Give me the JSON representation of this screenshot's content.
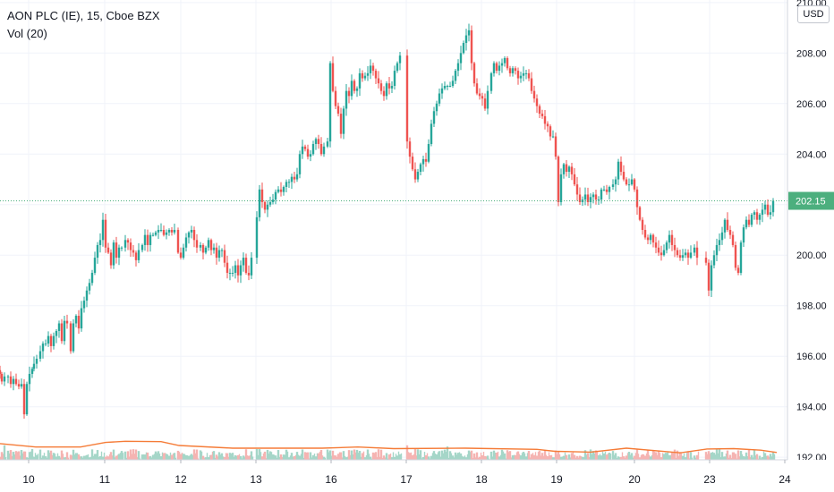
{
  "header": {
    "symbol_line": "AON PLC (IE), 15, Cboe BZX",
    "volume_line": "Vol (20)",
    "currency": "USD"
  },
  "chart_data": {
    "type": "candlestick",
    "title": "AON PLC (IE), 15, Cboe BZX",
    "ylim": [
      191.9,
      210.1
    ],
    "y_ticks": [
      192,
      194,
      196,
      198,
      200,
      202,
      204,
      206,
      208,
      210
    ],
    "y_tick_labels": [
      "192.00",
      "194.00",
      "196.00",
      "198.00",
      "200.00",
      "202.00",
      "204.00",
      "206.00",
      "208.00",
      "210.00"
    ],
    "x_tick_labels": [
      "10",
      "11",
      "12",
      "13",
      "16",
      "17",
      "18",
      "19",
      "20",
      "23",
      "24"
    ],
    "last_price": 202.15,
    "last_price_label": "202.15",
    "colors": {
      "up": "#26a69a",
      "down": "#ef5350",
      "up_volume": "#a5d6c8",
      "down_volume": "#f5b4b2",
      "ma": "#f57c38",
      "last_badge": "#4caf7e",
      "grid": "#f0f3fa"
    },
    "close_path": [
      [
        0,
        195.3
      ],
      [
        2,
        195.0
      ],
      [
        5,
        195.2
      ],
      [
        9,
        195.2
      ],
      [
        12,
        194.9
      ],
      [
        15,
        195.1
      ],
      [
        18,
        194.9
      ],
      [
        21,
        194.8
      ],
      [
        24,
        194.9
      ],
      [
        27,
        193.7
      ],
      [
        30,
        194.9
      ],
      [
        33,
        195.3
      ],
      [
        36,
        195.5
      ],
      [
        38,
        195.7
      ],
      [
        41,
        195.9
      ],
      [
        45,
        196.2
      ],
      [
        48,
        196.5
      ],
      [
        51,
        196.5
      ],
      [
        54,
        196.8
      ],
      [
        57,
        196.4
      ],
      [
        60,
        196.8
      ],
      [
        63,
        197.0
      ],
      [
        66,
        197.3
      ],
      [
        69,
        196.6
      ],
      [
        72,
        197.4
      ],
      [
        75,
        197.3
      ],
      [
        79,
        196.2
      ],
      [
        82,
        197.3
      ],
      [
        85,
        197.6
      ],
      [
        88,
        197.1
      ],
      [
        91,
        197.9
      ],
      [
        94,
        198.2
      ],
      [
        97,
        198.6
      ],
      [
        100,
        198.9
      ],
      [
        103,
        199.3
      ],
      [
        106,
        199.9
      ],
      [
        109,
        200.4
      ],
      [
        112,
        200.6
      ],
      [
        115,
        201.4
      ],
      [
        118,
        200.3
      ],
      [
        121,
        200.1
      ],
      [
        124,
        199.6
      ],
      [
        127,
        200.5
      ],
      [
        130,
        199.9
      ],
      [
        133,
        200.3
      ],
      [
        136,
        200.3
      ],
      [
        140,
        200.6
      ],
      [
        143,
        200.5
      ],
      [
        146,
        200.2
      ],
      [
        149,
        200.1
      ],
      [
        152,
        199.8
      ],
      [
        155,
        200.2
      ],
      [
        159,
        200.4
      ],
      [
        162,
        200.8
      ],
      [
        165,
        200.4
      ],
      [
        168,
        200.8
      ],
      [
        171,
        200.8
      ],
      [
        174,
        200.9
      ],
      [
        177,
        201.0
      ],
      [
        180,
        201.0
      ],
      [
        183,
        200.8
      ],
      [
        186,
        200.9
      ],
      [
        189,
        201.0
      ],
      [
        192,
        200.9
      ],
      [
        195,
        201.0
      ],
      [
        199,
        200.1
      ],
      [
        202,
        199.9
      ],
      [
        205,
        200.3
      ],
      [
        208,
        200.7
      ],
      [
        211,
        200.9
      ],
      [
        214,
        201.0
      ],
      [
        217,
        200.6
      ],
      [
        220,
        200.3
      ],
      [
        224,
        200.4
      ],
      [
        227,
        200.1
      ],
      [
        230,
        200.3
      ],
      [
        233,
        200.6
      ],
      [
        236,
        200.2
      ],
      [
        239,
        200.3
      ],
      [
        242,
        199.9
      ],
      [
        245,
        200.2
      ],
      [
        248,
        200.2
      ],
      [
        251,
        199.7
      ],
      [
        254,
        199.3
      ],
      [
        257,
        199.3
      ],
      [
        260,
        199.3
      ],
      [
        263,
        199.6
      ],
      [
        266,
        199.2
      ],
      [
        269,
        199.6
      ],
      [
        272,
        199.9
      ],
      [
        275,
        199.3
      ],
      [
        278,
        199.2
      ],
      [
        281,
        199.9
      ],
      [
        287,
        201.5
      ],
      [
        290,
        202.6
      ],
      [
        293,
        202.1
      ],
      [
        296,
        201.8
      ],
      [
        299,
        202.0
      ],
      [
        302,
        202.1
      ],
      [
        305,
        202.2
      ],
      [
        308,
        202.5
      ],
      [
        311,
        202.6
      ],
      [
        314,
        202.5
      ],
      [
        317,
        202.7
      ],
      [
        320,
        202.9
      ],
      [
        323,
        202.9
      ],
      [
        326,
        203.1
      ],
      [
        329,
        203.0
      ],
      [
        332,
        203.2
      ],
      [
        335,
        204.0
      ],
      [
        338,
        204.3
      ],
      [
        341,
        204.2
      ],
      [
        344,
        203.9
      ],
      [
        347,
        204.0
      ],
      [
        350,
        204.4
      ],
      [
        353,
        204.6
      ],
      [
        356,
        204.4
      ],
      [
        359,
        204.0
      ],
      [
        362,
        204.3
      ],
      [
        366,
        204.5
      ],
      [
        369,
        207.6
      ],
      [
        372,
        206.5
      ],
      [
        375,
        205.9
      ],
      [
        378,
        205.6
      ],
      [
        381,
        204.8
      ],
      [
        384,
        205.8
      ],
      [
        387,
        206.5
      ],
      [
        390,
        206.3
      ],
      [
        393,
        206.9
      ],
      [
        396,
        206.5
      ],
      [
        399,
        206.6
      ],
      [
        402,
        207.2
      ],
      [
        405,
        207.0
      ],
      [
        408,
        207.1
      ],
      [
        411,
        207.2
      ],
      [
        414,
        207.5
      ],
      [
        417,
        207.3
      ],
      [
        420,
        207.0
      ],
      [
        423,
        206.8
      ],
      [
        426,
        206.5
      ],
      [
        429,
        206.3
      ],
      [
        432,
        206.8
      ],
      [
        435,
        206.6
      ],
      [
        438,
        206.7
      ],
      [
        441,
        207.3
      ],
      [
        444,
        207.6
      ],
      [
        447,
        207.9
      ],
      [
        455,
        204.5
      ],
      [
        458,
        203.9
      ],
      [
        461,
        203.4
      ],
      [
        464,
        203.0
      ],
      [
        467,
        203.3
      ],
      [
        470,
        203.6
      ],
      [
        473,
        203.8
      ],
      [
        476,
        203.7
      ],
      [
        479,
        204.4
      ],
      [
        482,
        205.2
      ],
      [
        485,
        205.7
      ],
      [
        488,
        206.0
      ],
      [
        491,
        206.4
      ],
      [
        494,
        206.6
      ],
      [
        497,
        206.7
      ],
      [
        500,
        206.7
      ],
      [
        503,
        206.7
      ],
      [
        506,
        206.9
      ],
      [
        509,
        207.3
      ],
      [
        512,
        207.6
      ],
      [
        515,
        208.0
      ],
      [
        518,
        208.4
      ],
      [
        521,
        208.7
      ],
      [
        524,
        208.9
      ],
      [
        527,
        207.6
      ],
      [
        530,
        206.8
      ],
      [
        533,
        206.4
      ],
      [
        536,
        206.3
      ],
      [
        539,
        206.2
      ],
      [
        542,
        205.8
      ],
      [
        545,
        206.5
      ],
      [
        549,
        207.2
      ],
      [
        552,
        207.6
      ],
      [
        555,
        207.3
      ],
      [
        558,
        207.5
      ],
      [
        561,
        207.6
      ],
      [
        564,
        207.8
      ],
      [
        567,
        207.4
      ],
      [
        570,
        207.2
      ],
      [
        573,
        207.4
      ],
      [
        576,
        207.3
      ],
      [
        579,
        207.0
      ],
      [
        582,
        207.1
      ],
      [
        585,
        207.2
      ],
      [
        588,
        207.2
      ],
      [
        591,
        207.0
      ],
      [
        594,
        206.5
      ],
      [
        597,
        206.2
      ],
      [
        600,
        205.9
      ],
      [
        603,
        205.6
      ],
      [
        606,
        205.5
      ],
      [
        609,
        205.2
      ],
      [
        612,
        205.1
      ],
      [
        615,
        204.7
      ],
      [
        618,
        204.7
      ],
      [
        621,
        203.9
      ],
      [
        624,
        202.1
      ],
      [
        627,
        203.2
      ],
      [
        630,
        203.6
      ],
      [
        633,
        203.3
      ],
      [
        636,
        203.5
      ],
      [
        639,
        203.2
      ],
      [
        642,
        202.8
      ],
      [
        645,
        202.4
      ],
      [
        648,
        202.1
      ],
      [
        651,
        202.2
      ],
      [
        654,
        202.4
      ],
      [
        657,
        202.1
      ],
      [
        660,
        202.3
      ],
      [
        663,
        202.4
      ],
      [
        666,
        202.2
      ],
      [
        669,
        202.2
      ],
      [
        672,
        202.6
      ],
      [
        675,
        202.6
      ],
      [
        678,
        202.5
      ],
      [
        681,
        202.7
      ],
      [
        685,
        202.8
      ],
      [
        688,
        203.0
      ],
      [
        691,
        203.7
      ],
      [
        694,
        203.3
      ],
      [
        697,
        203.0
      ],
      [
        700,
        202.8
      ],
      [
        703,
        202.8
      ],
      [
        706,
        203.0
      ],
      [
        709,
        202.6
      ],
      [
        712,
        201.9
      ],
      [
        715,
        201.4
      ],
      [
        718,
        201.0
      ],
      [
        721,
        200.7
      ],
      [
        724,
        200.6
      ],
      [
        727,
        200.8
      ],
      [
        730,
        200.5
      ],
      [
        733,
        200.3
      ],
      [
        736,
        200.1
      ],
      [
        739,
        200.0
      ],
      [
        742,
        200.2
      ],
      [
        745,
        200.5
      ],
      [
        748,
        200.8
      ],
      [
        751,
        200.4
      ],
      [
        754,
        200.2
      ],
      [
        757,
        200.0
      ],
      [
        760,
        199.9
      ],
      [
        763,
        200.0
      ],
      [
        766,
        200.1
      ],
      [
        769,
        199.9
      ],
      [
        772,
        200.1
      ],
      [
        776,
        200.3
      ],
      [
        779,
        199.9
      ],
      [
        789,
        199.7
      ],
      [
        792,
        198.6
      ],
      [
        795,
        199.6
      ],
      [
        798,
        200.0
      ],
      [
        801,
        200.4
      ],
      [
        804,
        200.6
      ],
      [
        807,
        200.9
      ],
      [
        810,
        201.4
      ],
      [
        813,
        201.0
      ],
      [
        816,
        200.8
      ],
      [
        819,
        200.4
      ],
      [
        822,
        199.5
      ],
      [
        825,
        199.3
      ],
      [
        828,
        200.5
      ],
      [
        831,
        201.1
      ],
      [
        834,
        201.4
      ],
      [
        837,
        201.2
      ],
      [
        840,
        201.6
      ],
      [
        843,
        201.7
      ],
      [
        846,
        201.4
      ],
      [
        849,
        201.6
      ],
      [
        852,
        201.8
      ],
      [
        855,
        202.0
      ],
      [
        858,
        201.6
      ],
      [
        861,
        201.7
      ],
      [
        864,
        202.15
      ]
    ],
    "volume_spikes": [
      [
        5,
        0.6
      ],
      [
        28,
        0.8
      ],
      [
        49,
        0.6
      ],
      [
        104,
        0.55
      ],
      [
        110,
        2.5
      ],
      [
        131,
        0.7
      ],
      [
        200,
        0.9
      ],
      [
        210,
        0.55
      ],
      [
        244,
        0.7
      ],
      [
        288,
        0.5
      ],
      [
        368,
        1.2
      ],
      [
        446,
        0.8
      ],
      [
        455,
        0.6
      ],
      [
        500,
        0.55
      ],
      [
        534,
        0.7
      ],
      [
        556,
        0.5
      ],
      [
        619,
        1.1
      ],
      [
        690,
        0.5
      ],
      [
        705,
        0.7
      ],
      [
        790,
        1.7
      ],
      [
        821,
        0.55
      ]
    ],
    "volume_ma_path": [
      [
        0,
        0.42
      ],
      [
        40,
        0.33
      ],
      [
        90,
        0.33
      ],
      [
        118,
        0.45
      ],
      [
        140,
        0.48
      ],
      [
        180,
        0.47
      ],
      [
        200,
        0.37
      ],
      [
        260,
        0.3
      ],
      [
        290,
        0.3
      ],
      [
        360,
        0.3
      ],
      [
        400,
        0.33
      ],
      [
        440,
        0.29
      ],
      [
        520,
        0.3
      ],
      [
        600,
        0.27
      ],
      [
        620,
        0.22
      ],
      [
        660,
        0.2
      ],
      [
        700,
        0.3
      ],
      [
        760,
        0.18
      ],
      [
        790,
        0.28
      ],
      [
        820,
        0.29
      ],
      [
        850,
        0.25
      ],
      [
        868,
        0.19
      ]
    ],
    "tick_positions": [
      [
        32,
        "10"
      ],
      [
        117,
        "11"
      ],
      [
        202,
        "12"
      ],
      [
        286,
        "13"
      ],
      [
        370,
        "16"
      ],
      [
        454,
        "17"
      ],
      [
        538,
        "18"
      ],
      [
        622,
        "19"
      ],
      [
        709,
        "20"
      ],
      [
        793,
        "23"
      ],
      [
        877,
        "24"
      ]
    ]
  }
}
